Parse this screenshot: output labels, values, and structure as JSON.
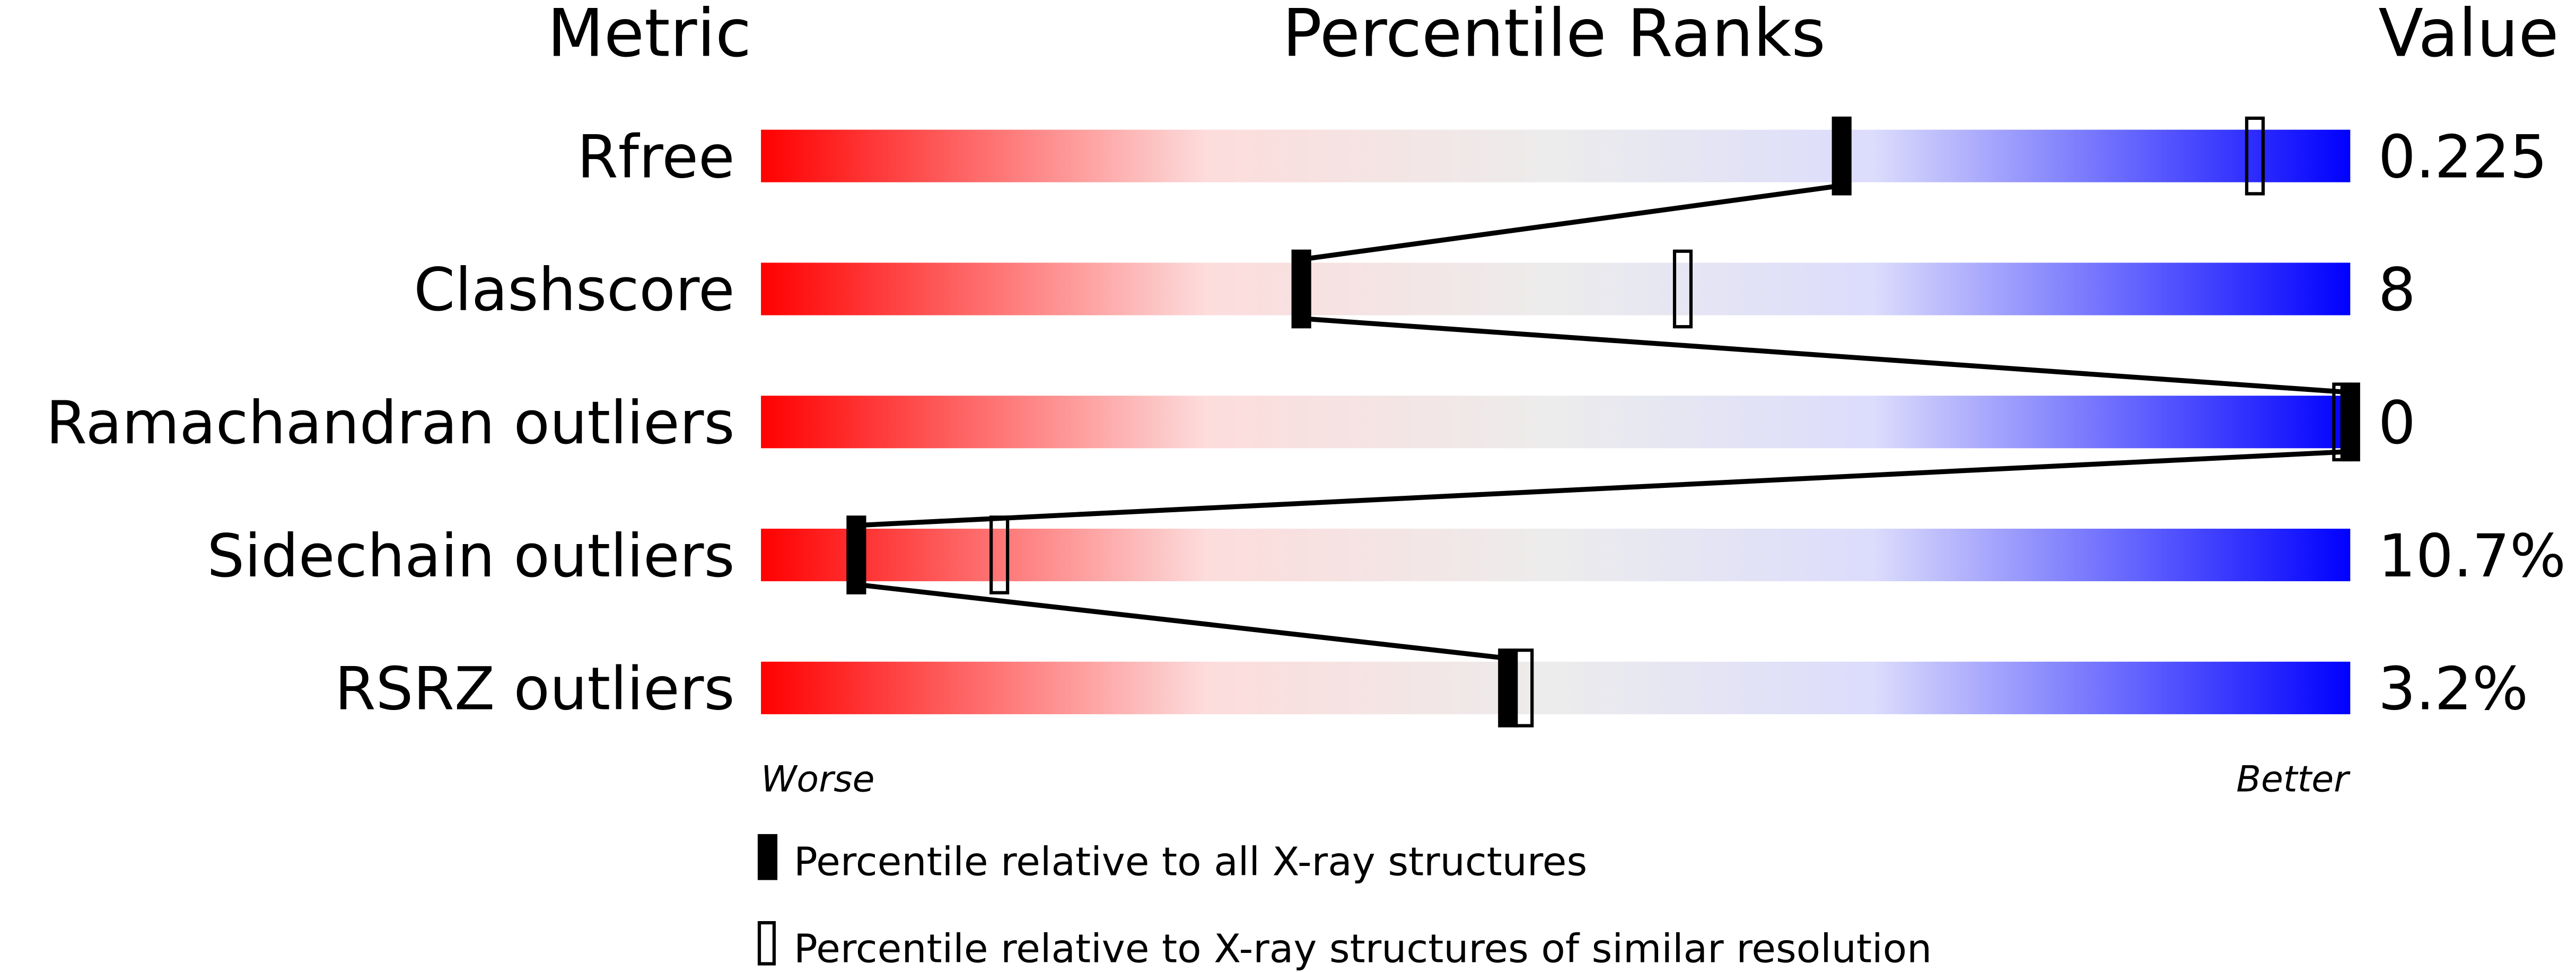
{
  "chart_data": {
    "type": "percentile-slider",
    "headers": {
      "metric": "Metric",
      "ranks": "Percentile Ranks",
      "value": "Value"
    },
    "xlim": [
      0,
      100
    ],
    "metrics": [
      {
        "name": "Rfree",
        "value": "0.225",
        "percentile_all": 68,
        "percentile_similar": 94
      },
      {
        "name": "Clashscore",
        "value": "8",
        "percentile_all": 34,
        "percentile_similar": 58
      },
      {
        "name": "Ramachandran outliers",
        "value": "0",
        "percentile_all": 100,
        "percentile_similar": 100
      },
      {
        "name": "Sidechain outliers",
        "value": "10.7%",
        "percentile_all": 6,
        "percentile_similar": 15
      },
      {
        "name": "RSRZ outliers",
        "value": "3.2%",
        "percentile_all": 47,
        "percentile_similar": 48
      }
    ],
    "axis": {
      "left": "Worse",
      "right": "Better"
    },
    "legend": {
      "all": "Percentile relative to all X-ray structures",
      "similar": "Percentile relative to X-ray structures of similar resolution"
    },
    "colors": {
      "worse": "#ff0000",
      "middle": "#eeeeee",
      "better": "#0000ff"
    }
  }
}
